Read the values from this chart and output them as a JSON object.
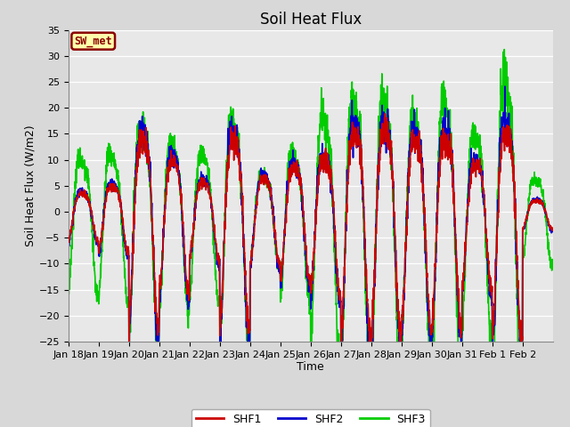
{
  "title": "Soil Heat Flux",
  "xlabel": "Time",
  "ylabel": "Soil Heat Flux (W/m2)",
  "ylim": [
    -25,
    35
  ],
  "yticks": [
    -25,
    -20,
    -15,
    -10,
    -5,
    0,
    5,
    10,
    15,
    20,
    25,
    30,
    35
  ],
  "x_tick_labels": [
    "Jan 18",
    "Jan 19",
    "Jan 20",
    "Jan 21",
    "Jan 22",
    "Jan 23",
    "Jan 24",
    "Jan 25",
    "Jan 26",
    "Jan 27",
    "Jan 28",
    "Jan 29",
    "Jan 30",
    "Jan 31",
    "Feb 1",
    "Feb 2"
  ],
  "annotation_text": "SW_met",
  "annotation_bg": "#ffffaa",
  "annotation_border": "#8B0000",
  "annotation_text_color": "#8B0000",
  "line_colors": {
    "SHF1": "#cc0000",
    "SHF2": "#0000cc",
    "SHF3": "#00cc00"
  },
  "line_width": 1.2,
  "plot_bg_color": "#e8e8e8",
  "grid_color": "#ffffff",
  "title_fontsize": 12,
  "axis_fontsize": 9,
  "tick_fontsize": 8,
  "n_days": 16,
  "pts_per_day": 144
}
